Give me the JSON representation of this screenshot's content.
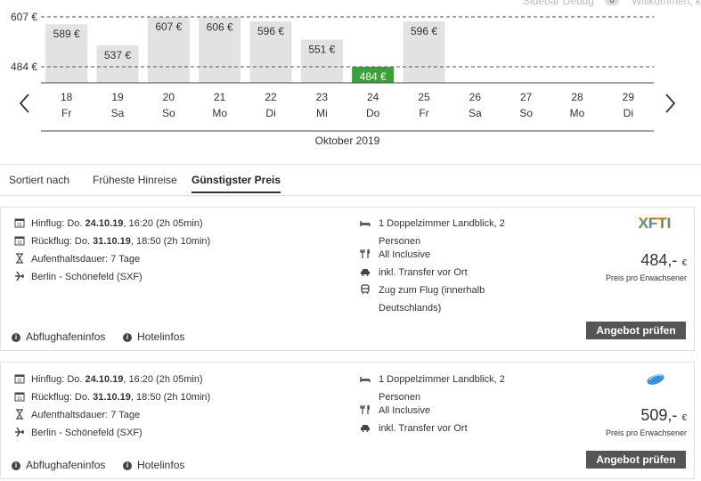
{
  "topbar": {
    "sidebar_debug": "Sidebar Debug",
    "debug_count": "0",
    "welcome": "Willkommen, k"
  },
  "chart_data": {
    "type": "bar",
    "categories": [
      "18 Fr",
      "19 Sa",
      "20 So",
      "21 Mo",
      "22 Di",
      "23 Mi",
      "24 Do",
      "25 Fr",
      "26 Sa",
      "27 So",
      "28 Mo",
      "29 Di"
    ],
    "days": [
      "18",
      "19",
      "20",
      "21",
      "22",
      "23",
      "24",
      "25",
      "26",
      "27",
      "28",
      "29"
    ],
    "weekdays": [
      "Fr",
      "Sa",
      "So",
      "Mo",
      "Di",
      "Mi",
      "Do",
      "Fr",
      "Sa",
      "So",
      "Mo",
      "Di"
    ],
    "values": [
      589,
      537,
      607,
      606,
      596,
      551,
      484,
      596,
      null,
      null,
      null,
      null
    ],
    "value_labels": [
      "589 €",
      "537 €",
      "607 €",
      "606 €",
      "596 €",
      "551 €",
      "484 €",
      "596 €",
      "",
      "",
      "",
      ""
    ],
    "highlight_index": 6,
    "reference_lines": [
      {
        "value": 607,
        "label": "607 €"
      },
      {
        "value": 484,
        "label": "484 €"
      }
    ],
    "ylim": [
      437,
      630
    ],
    "xlabel": "Oktober 2019",
    "colors": {
      "bar": "#e2e2e2",
      "best": "#3aa13a"
    }
  },
  "sort": {
    "label": "Sortiert nach",
    "options": [
      "Früheste Hinreise",
      "Günstigster Preis"
    ],
    "active_index": 1
  },
  "offers": [
    {
      "outbound_prefix": "Hinflug: Do. ",
      "outbound_date": "24.10.19",
      "outbound_suffix": ", 16:20 (2h 05min)",
      "return_prefix": "Rückflug: Do. ",
      "return_date": "31.10.19",
      "return_suffix": ", 18:50 (2h 10min)",
      "duration": "Aufenthaltsdauer: 7 Tage",
      "airport": "Berlin - Schönefeld (SXF)",
      "room_line1": "1 Doppelzimmer Landblick, 2",
      "room_line2": "Personen",
      "board": "All Inclusive",
      "transfer": "inkl. Transfer vor Ort",
      "train_line1": "Zug zum Flug (innerhalb",
      "train_line2": "Deutschlands)",
      "price": "484,-",
      "currency": "€",
      "price_note": "Preis pro Erwachsener",
      "operator_logo": "XFTI",
      "button": "Angebot prüfen",
      "link_airport": "Abflughafeninfos",
      "link_hotel": "Hotelinfos"
    },
    {
      "outbound_prefix": "Hinflug: Do. ",
      "outbound_date": "24.10.19",
      "outbound_suffix": ", 16:20 (2h 05min)",
      "return_prefix": "Rückflug: Do. ",
      "return_date": "31.10.19",
      "return_suffix": ", 18:50 (2h 10min)",
      "duration": "Aufenthaltsdauer: 7 Tage",
      "airport": "Berlin - Schönefeld (SXF)",
      "room_line1": "1 Doppelzimmer Landblick, 2",
      "room_line2": "Personen",
      "board": "All Inclusive",
      "transfer": "inkl. Transfer vor Ort",
      "price": "509,-",
      "currency": "€",
      "price_note": "Preis pro Erwachsener",
      "operator_logo": "airline-bird-logo",
      "button": "Angebot prüfen",
      "link_airport": "Abflughafeninfos",
      "link_hotel": "Hotelinfos"
    }
  ],
  "icons": {
    "calendar": "calendar-icon",
    "hourglass": "hourglass-icon",
    "plane": "plane-icon",
    "bed": "bed-icon",
    "cutlery": "cutlery-icon",
    "car": "car-icon",
    "train": "train-icon",
    "info": "info-icon"
  }
}
